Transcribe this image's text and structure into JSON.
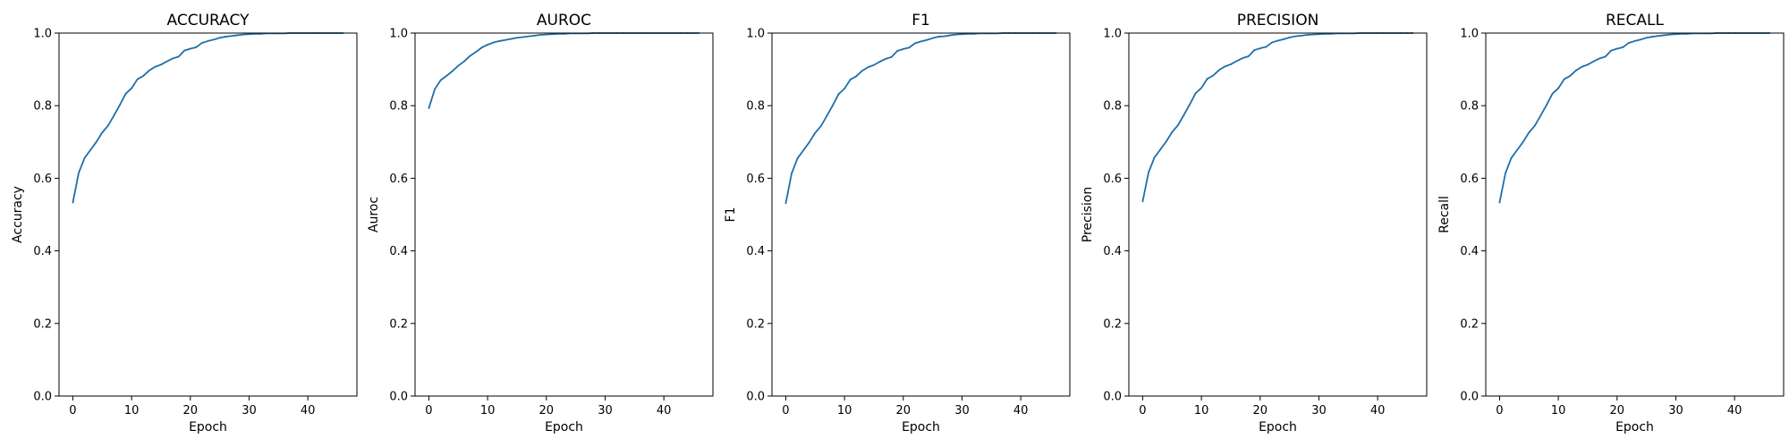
{
  "chart_data": [
    {
      "type": "line",
      "title": "ACCURACY",
      "xlabel": "Epoch",
      "ylabel": "Accuracy",
      "xlim": [
        -2.35,
        48.35
      ],
      "ylim": [
        0.0,
        1.0
      ],
      "xticks": [
        0,
        10,
        20,
        30,
        40
      ],
      "yticks": [
        0.0,
        0.2,
        0.4,
        0.6,
        0.8,
        1.0
      ],
      "grid": false,
      "series": [
        {
          "x": [
            0,
            1,
            2,
            3,
            4,
            5,
            6,
            7,
            8,
            9,
            10,
            11,
            12,
            13,
            14,
            15,
            16,
            17,
            18,
            19,
            20,
            21,
            22,
            23,
            24,
            25,
            26,
            27,
            28,
            29,
            30,
            31,
            32,
            33,
            34,
            35,
            36,
            37,
            38,
            39,
            40,
            41,
            42,
            43,
            44,
            45,
            46
          ],
          "values": [
            0.533,
            0.615,
            0.656,
            0.678,
            0.7,
            0.726,
            0.745,
            0.773,
            0.802,
            0.833,
            0.848,
            0.873,
            0.882,
            0.897,
            0.907,
            0.913,
            0.922,
            0.93,
            0.935,
            0.952,
            0.957,
            0.961,
            0.973,
            0.978,
            0.982,
            0.987,
            0.99,
            0.992,
            0.994,
            0.996,
            0.997,
            0.998,
            0.998,
            0.999,
            0.999,
            0.999,
            0.999,
            1.0,
            1.0,
            1.0,
            1.0,
            1.0,
            1.0,
            1.0,
            1.0,
            1.0,
            1.0
          ]
        }
      ]
    },
    {
      "type": "line",
      "title": "AUROC",
      "xlabel": "Epoch",
      "ylabel": "Auroc",
      "xlim": [
        -2.35,
        48.35
      ],
      "ylim": [
        0.0,
        1.0
      ],
      "xticks": [
        0,
        10,
        20,
        30,
        40
      ],
      "yticks": [
        0.0,
        0.2,
        0.4,
        0.6,
        0.8,
        1.0
      ],
      "grid": false,
      "series": [
        {
          "x": [
            0,
            1,
            2,
            3,
            4,
            5,
            6,
            7,
            8,
            9,
            10,
            11,
            12,
            13,
            14,
            15,
            16,
            17,
            18,
            19,
            20,
            21,
            22,
            23,
            24,
            25,
            26,
            27,
            28,
            29,
            30,
            31,
            32,
            33,
            34,
            35,
            36,
            37,
            38,
            39,
            40,
            41,
            42,
            43,
            44,
            45,
            46
          ],
          "values": [
            0.793,
            0.845,
            0.87,
            0.882,
            0.895,
            0.91,
            0.922,
            0.937,
            0.948,
            0.96,
            0.968,
            0.974,
            0.978,
            0.981,
            0.984,
            0.987,
            0.989,
            0.991,
            0.993,
            0.995,
            0.996,
            0.997,
            0.998,
            0.998,
            0.999,
            0.999,
            0.999,
            0.999,
            1.0,
            1.0,
            1.0,
            1.0,
            1.0,
            1.0,
            1.0,
            1.0,
            1.0,
            1.0,
            1.0,
            1.0,
            1.0,
            1.0,
            1.0,
            1.0,
            1.0,
            1.0,
            1.0
          ]
        }
      ]
    },
    {
      "type": "line",
      "title": "F1",
      "xlabel": "Epoch",
      "ylabel": "F1",
      "xlim": [
        -2.35,
        48.35
      ],
      "ylim": [
        0.0,
        1.0
      ],
      "xticks": [
        0,
        10,
        20,
        30,
        40
      ],
      "yticks": [
        0.0,
        0.2,
        0.4,
        0.6,
        0.8,
        1.0
      ],
      "grid": false,
      "series": [
        {
          "x": [
            0,
            1,
            2,
            3,
            4,
            5,
            6,
            7,
            8,
            9,
            10,
            11,
            12,
            13,
            14,
            15,
            16,
            17,
            18,
            19,
            20,
            21,
            22,
            23,
            24,
            25,
            26,
            27,
            28,
            29,
            30,
            31,
            32,
            33,
            34,
            35,
            36,
            37,
            38,
            39,
            40,
            41,
            42,
            43,
            44,
            45,
            46
          ],
          "values": [
            0.531,
            0.613,
            0.655,
            0.677,
            0.699,
            0.725,
            0.744,
            0.772,
            0.801,
            0.832,
            0.847,
            0.872,
            0.881,
            0.896,
            0.906,
            0.912,
            0.921,
            0.929,
            0.934,
            0.951,
            0.956,
            0.96,
            0.972,
            0.977,
            0.981,
            0.986,
            0.99,
            0.991,
            0.994,
            0.996,
            0.997,
            0.998,
            0.998,
            0.999,
            0.999,
            0.999,
            0.999,
            1.0,
            1.0,
            1.0,
            1.0,
            1.0,
            1.0,
            1.0,
            1.0,
            1.0,
            1.0
          ]
        }
      ]
    },
    {
      "type": "line",
      "title": "PRECISION",
      "xlabel": "Epoch",
      "ylabel": "Precision",
      "xlim": [
        -2.35,
        48.35
      ],
      "ylim": [
        0.0,
        1.0
      ],
      "xticks": [
        0,
        10,
        20,
        30,
        40
      ],
      "yticks": [
        0.0,
        0.2,
        0.4,
        0.6,
        0.8,
        1.0
      ],
      "grid": false,
      "series": [
        {
          "x": [
            0,
            1,
            2,
            3,
            4,
            5,
            6,
            7,
            8,
            9,
            10,
            11,
            12,
            13,
            14,
            15,
            16,
            17,
            18,
            19,
            20,
            21,
            22,
            23,
            24,
            25,
            26,
            27,
            28,
            29,
            30,
            31,
            32,
            33,
            34,
            35,
            36,
            37,
            38,
            39,
            40,
            41,
            42,
            43,
            44,
            45,
            46
          ],
          "values": [
            0.536,
            0.616,
            0.657,
            0.679,
            0.701,
            0.727,
            0.746,
            0.774,
            0.803,
            0.834,
            0.849,
            0.874,
            0.883,
            0.898,
            0.908,
            0.914,
            0.923,
            0.931,
            0.936,
            0.953,
            0.958,
            0.962,
            0.974,
            0.979,
            0.983,
            0.988,
            0.991,
            0.993,
            0.995,
            0.996,
            0.997,
            0.998,
            0.998,
            0.999,
            0.999,
            0.999,
            0.999,
            1.0,
            1.0,
            1.0,
            1.0,
            1.0,
            1.0,
            1.0,
            1.0,
            1.0,
            1.0
          ]
        }
      ]
    },
    {
      "type": "line",
      "title": "RECALL",
      "xlabel": "Epoch",
      "ylabel": "Recall",
      "xlim": [
        -2.35,
        48.35
      ],
      "ylim": [
        0.0,
        1.0
      ],
      "xticks": [
        0,
        10,
        20,
        30,
        40
      ],
      "yticks": [
        0.0,
        0.2,
        0.4,
        0.6,
        0.8,
        1.0
      ],
      "grid": false,
      "series": [
        {
          "x": [
            0,
            1,
            2,
            3,
            4,
            5,
            6,
            7,
            8,
            9,
            10,
            11,
            12,
            13,
            14,
            15,
            16,
            17,
            18,
            19,
            20,
            21,
            22,
            23,
            24,
            25,
            26,
            27,
            28,
            29,
            30,
            31,
            32,
            33,
            34,
            35,
            36,
            37,
            38,
            39,
            40,
            41,
            42,
            43,
            44,
            45,
            46
          ],
          "values": [
            0.533,
            0.614,
            0.656,
            0.678,
            0.7,
            0.726,
            0.745,
            0.773,
            0.802,
            0.833,
            0.848,
            0.873,
            0.882,
            0.897,
            0.907,
            0.913,
            0.922,
            0.93,
            0.935,
            0.952,
            0.957,
            0.961,
            0.973,
            0.978,
            0.982,
            0.987,
            0.99,
            0.992,
            0.994,
            0.996,
            0.997,
            0.998,
            0.998,
            0.999,
            0.999,
            0.999,
            0.999,
            1.0,
            1.0,
            1.0,
            1.0,
            1.0,
            1.0,
            1.0,
            1.0,
            1.0,
            1.0
          ]
        }
      ]
    }
  ],
  "colors": {
    "line": "#1f6fa8",
    "axes": "#000000",
    "background": "#ffffff"
  }
}
